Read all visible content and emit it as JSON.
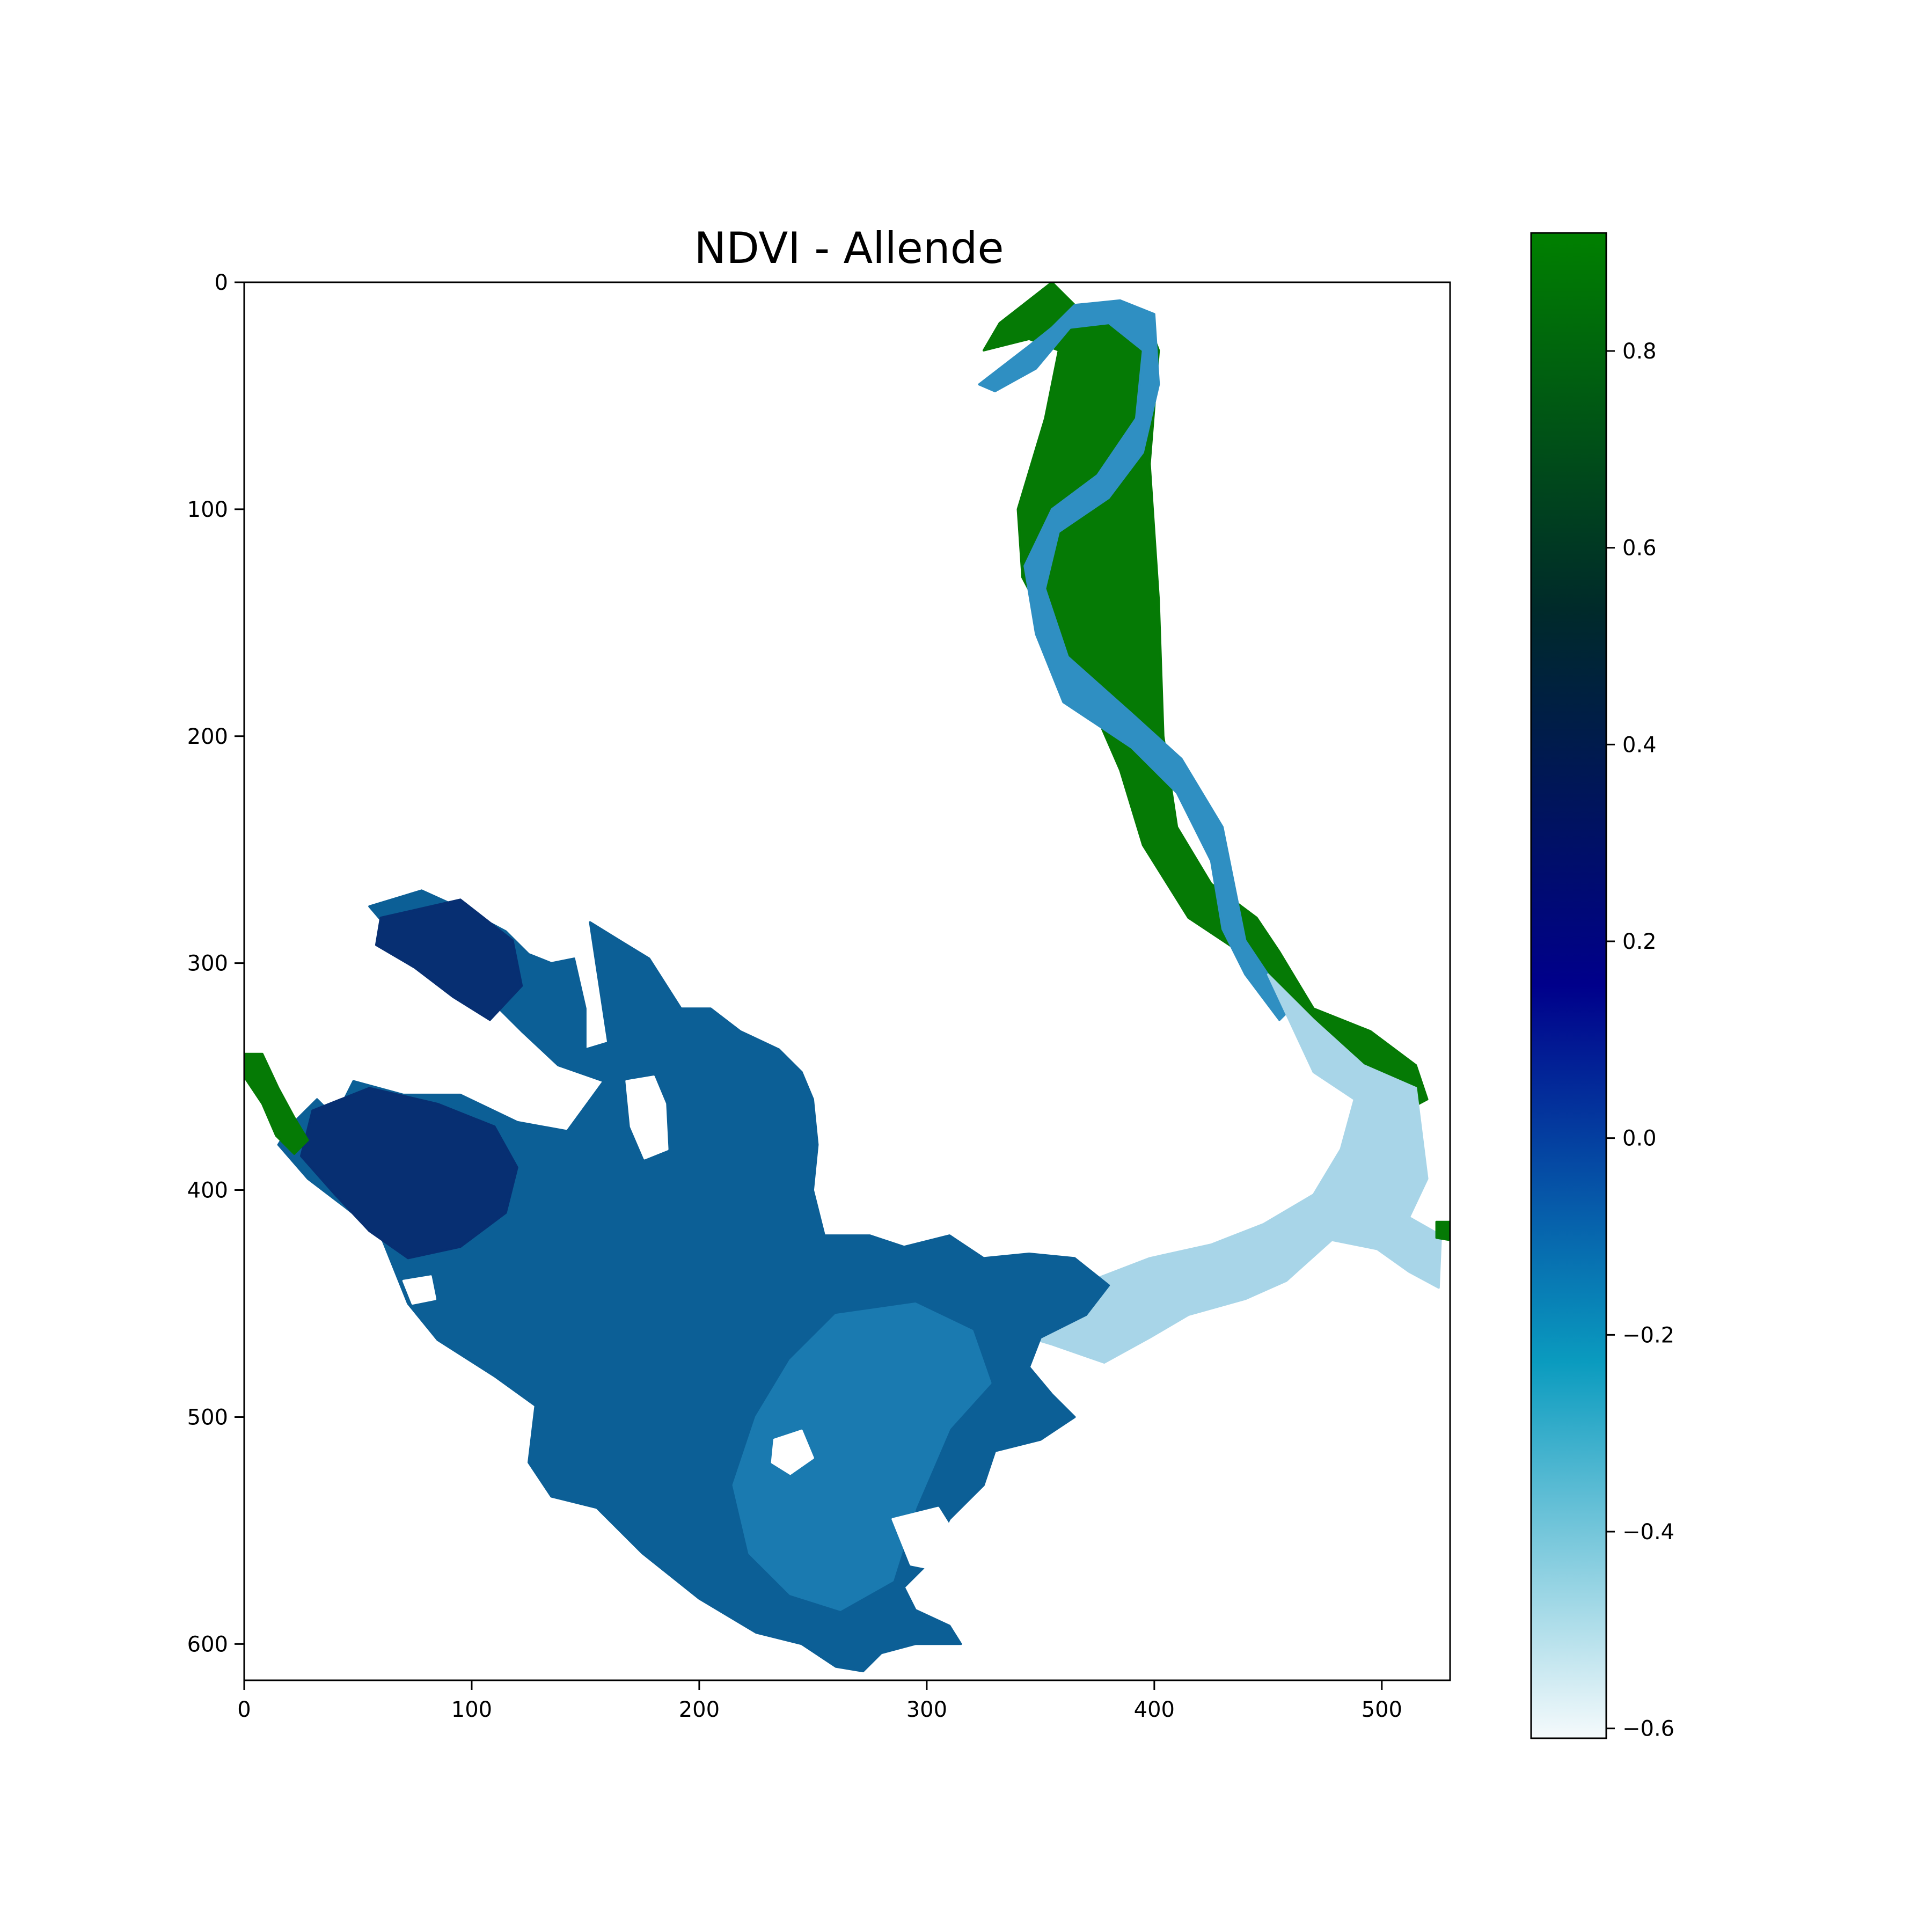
{
  "chart_data": {
    "type": "heatmap",
    "title": "NDVI - Allende",
    "xlabel": "",
    "ylabel": "",
    "xlim": [
      0,
      530
    ],
    "ylim": [
      616,
      0
    ],
    "x_ticks": [
      0,
      100,
      200,
      300,
      400,
      500
    ],
    "x_tick_labels": [
      "0",
      "100",
      "200",
      "300",
      "400",
      "500"
    ],
    "y_ticks": [
      0,
      100,
      200,
      300,
      400,
      500,
      600
    ],
    "y_tick_labels": [
      "0",
      "100",
      "200",
      "300",
      "400",
      "500",
      "600"
    ],
    "grid": false,
    "colorbar": {
      "min": -0.61,
      "max": 0.92,
      "ticks": [
        0.8,
        0.6,
        0.4,
        0.2,
        0.0,
        -0.2,
        -0.4,
        -0.6
      ],
      "tick_labels": [
        "0.8",
        "0.6",
        "0.4",
        "0.2",
        "0.0",
        "−0.2",
        "−0.4",
        "−0.6"
      ],
      "colormap": "ocean_r",
      "colors": [
        "#f5fafc",
        "#0a9bbf",
        "#00008b",
        "#002a2a",
        "#008000"
      ]
    },
    "regions": [
      {
        "id": "riparian-vegetation",
        "ndvi": 0.88,
        "color": "#057a05",
        "polygon": [
          [
            355,
            0
          ],
          [
            365,
            10
          ],
          [
            395,
            12
          ],
          [
            402,
            30
          ],
          [
            398,
            80
          ],
          [
            402,
            140
          ],
          [
            404,
            200
          ],
          [
            410,
            240
          ],
          [
            425,
            265
          ],
          [
            445,
            280
          ],
          [
            455,
            295
          ],
          [
            470,
            320
          ],
          [
            495,
            330
          ],
          [
            515,
            345
          ],
          [
            520,
            360
          ],
          [
            505,
            368
          ],
          [
            490,
            355
          ],
          [
            470,
            330
          ],
          [
            445,
            300
          ],
          [
            415,
            280
          ],
          [
            395,
            248
          ],
          [
            385,
            215
          ],
          [
            372,
            185
          ],
          [
            355,
            155
          ],
          [
            342,
            130
          ],
          [
            340,
            100
          ],
          [
            352,
            60
          ],
          [
            358,
            30
          ],
          [
            345,
            25
          ],
          [
            325,
            30
          ],
          [
            332,
            18
          ]
        ]
      },
      {
        "id": "river-channel",
        "ndvi": -0.15,
        "color": "#2f8fc2",
        "polygon": [
          [
            345,
            28
          ],
          [
            355,
            20
          ],
          [
            365,
            10
          ],
          [
            385,
            8
          ],
          [
            400,
            14
          ],
          [
            402,
            45
          ],
          [
            395,
            75
          ],
          [
            380,
            95
          ],
          [
            358,
            110
          ],
          [
            352,
            135
          ],
          [
            362,
            165
          ],
          [
            390,
            190
          ],
          [
            412,
            210
          ],
          [
            430,
            240
          ],
          [
            435,
            265
          ],
          [
            440,
            290
          ],
          [
            450,
            305
          ],
          [
            462,
            318
          ],
          [
            455,
            325
          ],
          [
            440,
            305
          ],
          [
            430,
            285
          ],
          [
            425,
            255
          ],
          [
            410,
            225
          ],
          [
            390,
            205
          ],
          [
            360,
            185
          ],
          [
            348,
            155
          ],
          [
            343,
            125
          ],
          [
            355,
            100
          ],
          [
            375,
            85
          ],
          [
            392,
            60
          ],
          [
            395,
            30
          ],
          [
            380,
            18
          ],
          [
            363,
            20
          ],
          [
            348,
            38
          ],
          [
            330,
            48
          ],
          [
            323,
            45
          ]
        ]
      },
      {
        "id": "reservoir-arm",
        "ndvi": -0.35,
        "color": "#a8d5e8",
        "polygon": [
          [
            450,
            305
          ],
          [
            470,
            325
          ],
          [
            492,
            345
          ],
          [
            515,
            355
          ],
          [
            520,
            395
          ],
          [
            512,
            412
          ],
          [
            526,
            420
          ],
          [
            525,
            443
          ],
          [
            512,
            436
          ],
          [
            498,
            426
          ],
          [
            478,
            422
          ],
          [
            458,
            440
          ],
          [
            440,
            448
          ],
          [
            415,
            455
          ],
          [
            398,
            465
          ],
          [
            378,
            476
          ],
          [
            355,
            468
          ],
          [
            335,
            462
          ],
          [
            320,
            448
          ],
          [
            345,
            442
          ],
          [
            372,
            440
          ],
          [
            398,
            430
          ],
          [
            425,
            424
          ],
          [
            448,
            415
          ],
          [
            470,
            402
          ],
          [
            482,
            382
          ],
          [
            488,
            360
          ],
          [
            470,
            348
          ]
        ]
      },
      {
        "id": "reservoir-main",
        "ndvi": 0.12,
        "color": "#0c5f96",
        "polygon": [
          [
            55,
            275
          ],
          [
            78,
            268
          ],
          [
            100,
            278
          ],
          [
            115,
            286
          ],
          [
            125,
            296
          ],
          [
            135,
            300
          ],
          [
            145,
            298
          ],
          [
            150,
            320
          ],
          [
            150,
            338
          ],
          [
            160,
            335
          ],
          [
            152,
            282
          ],
          [
            165,
            290
          ],
          [
            178,
            298
          ],
          [
            192,
            320
          ],
          [
            205,
            320
          ],
          [
            218,
            330
          ],
          [
            235,
            338
          ],
          [
            245,
            348
          ],
          [
            250,
            360
          ],
          [
            252,
            380
          ],
          [
            250,
            400
          ],
          [
            255,
            420
          ],
          [
            275,
            420
          ],
          [
            290,
            425
          ],
          [
            310,
            420
          ],
          [
            325,
            430
          ],
          [
            345,
            428
          ],
          [
            365,
            430
          ],
          [
            380,
            442
          ],
          [
            370,
            455
          ],
          [
            350,
            465
          ],
          [
            345,
            478
          ],
          [
            355,
            490
          ],
          [
            365,
            500
          ],
          [
            350,
            510
          ],
          [
            330,
            515
          ],
          [
            325,
            530
          ],
          [
            310,
            545
          ],
          [
            300,
            565
          ],
          [
            290,
            575
          ],
          [
            295,
            585
          ],
          [
            310,
            592
          ],
          [
            315,
            600
          ],
          [
            295,
            600
          ],
          [
            280,
            604
          ],
          [
            272,
            612
          ],
          [
            260,
            610
          ],
          [
            245,
            600
          ],
          [
            225,
            595
          ],
          [
            200,
            580
          ],
          [
            175,
            560
          ],
          [
            155,
            540
          ],
          [
            135,
            535
          ],
          [
            125,
            520
          ],
          [
            128,
            495
          ],
          [
            110,
            482
          ],
          [
            85,
            466
          ],
          [
            72,
            450
          ],
          [
            60,
            420
          ],
          [
            45,
            408
          ],
          [
            28,
            395
          ],
          [
            15,
            380
          ],
          [
            20,
            372
          ],
          [
            32,
            360
          ],
          [
            40,
            368
          ],
          [
            48,
            352
          ],
          [
            70,
            358
          ],
          [
            95,
            358
          ],
          [
            120,
            370
          ],
          [
            142,
            374
          ],
          [
            158,
            352
          ],
          [
            138,
            345
          ],
          [
            122,
            330
          ],
          [
            112,
            320
          ],
          [
            92,
            305
          ],
          [
            72,
            295
          ]
        ]
      },
      {
        "id": "reservoir-shallows",
        "ndvi": -0.05,
        "color": "#1a7ab0",
        "polygon": [
          [
            260,
            455
          ],
          [
            295,
            450
          ],
          [
            320,
            462
          ],
          [
            328,
            485
          ],
          [
            310,
            505
          ],
          [
            295,
            540
          ],
          [
            285,
            572
          ],
          [
            262,
            585
          ],
          [
            240,
            578
          ],
          [
            222,
            560
          ],
          [
            215,
            530
          ],
          [
            225,
            500
          ],
          [
            240,
            475
          ]
        ]
      },
      {
        "id": "reservoir-deep-inlets",
        "ndvi": 0.3,
        "color": "#072f72",
        "polygon": [
          [
            60,
            280
          ],
          [
            95,
            272
          ],
          [
            118,
            290
          ],
          [
            122,
            310
          ],
          [
            108,
            325
          ],
          [
            92,
            315
          ],
          [
            75,
            302
          ],
          [
            58,
            292
          ]
        ]
      },
      {
        "id": "reservoir-northwest-arm",
        "ndvi": 0.3,
        "color": "#072f72",
        "polygon": [
          [
            30,
            365
          ],
          [
            55,
            355
          ],
          [
            85,
            362
          ],
          [
            110,
            372
          ],
          [
            120,
            390
          ],
          [
            115,
            410
          ],
          [
            95,
            425
          ],
          [
            72,
            430
          ],
          [
            55,
            418
          ],
          [
            40,
            402
          ],
          [
            25,
            385
          ]
        ]
      },
      {
        "id": "west-shore-vegetation",
        "ndvi": 0.85,
        "color": "#057a05",
        "polygon": [
          [
            0,
            340
          ],
          [
            8,
            340
          ],
          [
            15,
            355
          ],
          [
            22,
            368
          ],
          [
            28,
            378
          ],
          [
            22,
            384
          ],
          [
            14,
            376
          ],
          [
            8,
            362
          ],
          [
            0,
            350
          ]
        ]
      },
      {
        "id": "east-tip-vegetation",
        "ndvi": 0.85,
        "color": "#057a05",
        "polygon": [
          [
            524,
            414
          ],
          [
            530,
            414
          ],
          [
            530,
            422
          ],
          [
            524,
            421
          ]
        ]
      },
      {
        "id": "reservoir-island-1",
        "ndvi": null,
        "color": "#ffffff",
        "polygon": [
          [
            168,
            352
          ],
          [
            180,
            350
          ],
          [
            185,
            362
          ],
          [
            186,
            382
          ],
          [
            176,
            386
          ],
          [
            170,
            372
          ]
        ]
      },
      {
        "id": "reservoir-island-2",
        "ndvi": null,
        "color": "#ffffff",
        "polygon": [
          [
            233,
            510
          ],
          [
            245,
            506
          ],
          [
            250,
            518
          ],
          [
            240,
            525
          ],
          [
            232,
            520
          ]
        ]
      },
      {
        "id": "reservoir-island-3",
        "ndvi": null,
        "color": "#ffffff",
        "polygon": [
          [
            70,
            440
          ],
          [
            82,
            438
          ],
          [
            84,
            448
          ],
          [
            74,
            450
          ]
        ]
      },
      {
        "id": "reservoir-south-cove",
        "ndvi": null,
        "color": "#ffffff",
        "polygon": [
          [
            285,
            545
          ],
          [
            305,
            540
          ],
          [
            315,
            556
          ],
          [
            308,
            568
          ],
          [
            293,
            565
          ]
        ]
      }
    ]
  }
}
